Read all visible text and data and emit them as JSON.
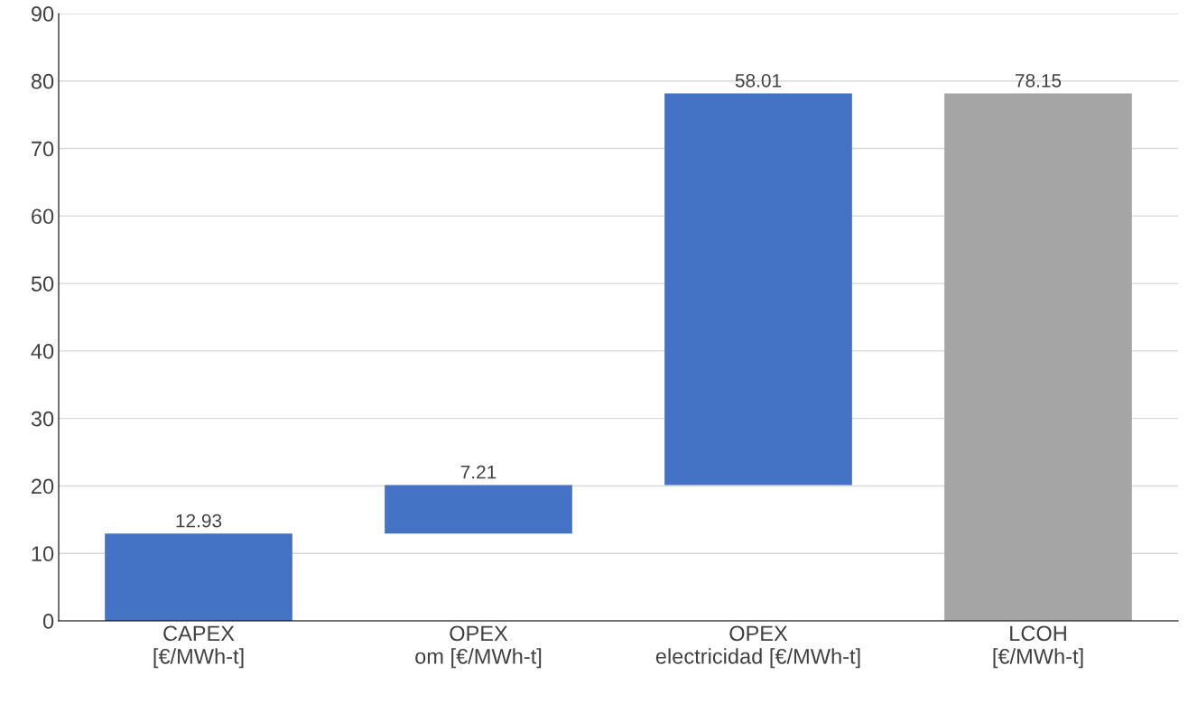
{
  "chart_data": {
    "type": "bar",
    "categories": [
      "CAPEX\n[€/MWh-t]",
      "OPEX\nom [€/MWh-t]",
      "OPEX\nelectricidad [€/MWh-t]",
      "LCOH\n[€/MWh-t]"
    ],
    "values": [
      12.93,
      7.21,
      58.01,
      78.15
    ],
    "base": [
      0,
      12.93,
      20.14,
      0
    ],
    "colors": [
      "#4472c4",
      "#4472c4",
      "#4472c4",
      "#a5a5a5"
    ],
    "data_labels": true,
    "ylim": [
      0,
      90
    ],
    "yticks": [
      0,
      10,
      20,
      30,
      40,
      50,
      60,
      70,
      80,
      90
    ],
    "grid": "y"
  }
}
